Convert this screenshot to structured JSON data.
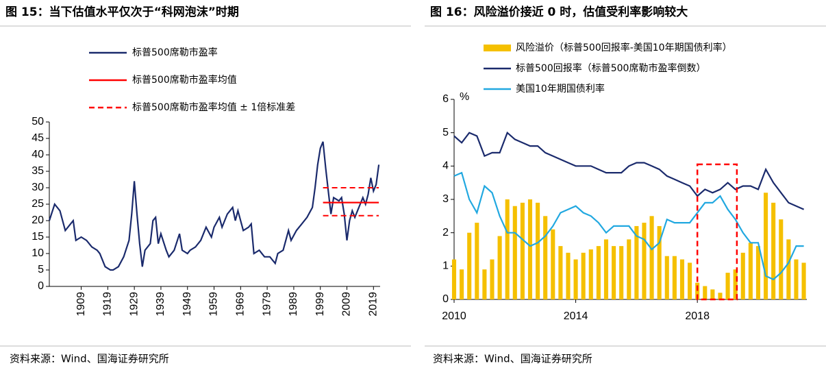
{
  "chart_data": [
    {
      "type": "line",
      "title": "图 15：当下估值水平仅次于“科网泡沫”时期",
      "source": "资料来源：Wind、国海证券研究所",
      "xlim": [
        1897,
        2021.5
      ],
      "xticks": [
        1909,
        1919,
        1929,
        1939,
        1949,
        1959,
        1969,
        1979,
        1989,
        1999,
        2009,
        2019
      ],
      "ylim": [
        0,
        50
      ],
      "yticks": [
        0,
        5,
        10,
        15,
        20,
        25,
        30,
        35,
        40,
        45,
        50
      ],
      "legend": "top",
      "series": [
        {
          "name": "标普500席勒市盈率",
          "color": "#1a2a6c",
          "x": [
            1897,
            1899,
            1901,
            1903,
            1905,
            1906,
            1907,
            1909,
            1911,
            1913,
            1915,
            1916,
            1917,
            1918,
            1920,
            1921,
            1923,
            1925,
            1927,
            1928,
            1929,
            1930,
            1931,
            1932,
            1933,
            1935,
            1936,
            1937,
            1938,
            1939,
            1941,
            1942,
            1944,
            1946,
            1947,
            1949,
            1950,
            1952,
            1954,
            1956,
            1958,
            1959,
            1961,
            1962,
            1964,
            1966,
            1967,
            1968,
            1970,
            1972,
            1973,
            1974,
            1976,
            1978,
            1980,
            1982,
            1983,
            1985,
            1987,
            1988,
            1990,
            1992,
            1994,
            1996,
            1997,
            1998,
            1999,
            2000,
            2001,
            2002,
            2003,
            2004,
            2006,
            2007,
            2008,
            2009,
            2010,
            2011,
            2012,
            2013,
            2014,
            2015,
            2016,
            2017,
            2018,
            2019,
            2020,
            2021
          ],
          "values": [
            20,
            25,
            23,
            17,
            19,
            20,
            14,
            15,
            14,
            12,
            11,
            10,
            8,
            6,
            5,
            5,
            6,
            9,
            14,
            22,
            32,
            22,
            13,
            6,
            11,
            13,
            20,
            21,
            13,
            16,
            11,
            9,
            11,
            16,
            11,
            10,
            11,
            12,
            14,
            18,
            15,
            18,
            21,
            18,
            22,
            24,
            20,
            23,
            17,
            18,
            19,
            10,
            11,
            9,
            9,
            7,
            10,
            11,
            17,
            14,
            17,
            19,
            21,
            24,
            30,
            37,
            42,
            44,
            36,
            29,
            22,
            27,
            26,
            27,
            22,
            14,
            20,
            23,
            21,
            23,
            25,
            27,
            25,
            28,
            33,
            29,
            31,
            37
          ]
        },
        {
          "name": "标普500席勒市盈率均值",
          "color": "#ff0000",
          "x": [
            2000,
            2021
          ],
          "values": [
            25.5,
            25.5
          ]
        },
        {
          "name": "标普500席勒市盈率均值 ± 1倍标准差",
          "color": "#ff0000",
          "dash": true,
          "x": [
            2000,
            2021
          ],
          "values": [
            30,
            30
          ],
          "lower": [
            21.5,
            21.5
          ]
        }
      ]
    },
    {
      "type": "combo",
      "title": "图 16：风险溢价接近 0 时，估值受利率影响较大",
      "source": "资料来源：Wind、国海证券研究所",
      "ylabel": "%",
      "xlim": [
        2010,
        2021.6
      ],
      "xticks": [
        2010,
        2014,
        2018
      ],
      "ylim": [
        0,
        6
      ],
      "yticks": [
        0,
        1,
        2,
        3,
        4,
        5,
        6
      ],
      "legend": "top",
      "highlight": {
        "color": "#ff0000",
        "x": [
          2018,
          2019.3
        ],
        "y": [
          0,
          4.05
        ]
      },
      "x": [
        2010,
        2010.25,
        2010.5,
        2010.75,
        2011,
        2011.25,
        2011.5,
        2011.75,
        2012,
        2012.25,
        2012.5,
        2012.75,
        2013,
        2013.25,
        2013.5,
        2013.75,
        2014,
        2014.25,
        2014.5,
        2014.75,
        2015,
        2015.25,
        2015.5,
        2015.75,
        2016,
        2016.25,
        2016.5,
        2016.75,
        2017,
        2017.25,
        2017.5,
        2017.75,
        2018,
        2018.25,
        2018.5,
        2018.75,
        2019,
        2019.25,
        2019.5,
        2019.75,
        2020,
        2020.25,
        2020.5,
        2020.75,
        2021,
        2021.25,
        2021.5
      ],
      "series": [
        {
          "name": "风险溢价（标普500回报率-美国10年期国债利率）",
          "kind": "bar",
          "color": "#f5c000",
          "values": [
            1.2,
            0.9,
            2.0,
            2.3,
            0.9,
            1.2,
            1.9,
            3.0,
            2.8,
            2.9,
            3.0,
            2.9,
            2.5,
            2.1,
            1.6,
            1.4,
            1.2,
            1.4,
            1.5,
            1.6,
            1.8,
            1.6,
            1.6,
            1.8,
            2.2,
            2.3,
            2.5,
            2.2,
            1.3,
            1.3,
            1.2,
            1.1,
            0.5,
            0.4,
            0.3,
            0.2,
            0.8,
            0.9,
            1.4,
            1.7,
            1.6,
            3.2,
            2.9,
            2.4,
            1.8,
            1.2,
            1.1
          ]
        },
        {
          "name": "标普500回报率（标普500席勒市盈率倒数）",
          "kind": "line",
          "color": "#1a2a6c",
          "values": [
            4.9,
            4.7,
            5.0,
            4.9,
            4.3,
            4.4,
            4.4,
            5.0,
            4.8,
            4.7,
            4.6,
            4.6,
            4.4,
            4.3,
            4.2,
            4.1,
            4.0,
            4.0,
            4.0,
            3.9,
            3.8,
            3.8,
            3.8,
            4.0,
            4.1,
            4.1,
            4.0,
            3.9,
            3.7,
            3.6,
            3.5,
            3.4,
            3.1,
            3.3,
            3.2,
            3.3,
            3.5,
            3.3,
            3.4,
            3.4,
            3.3,
            3.9,
            3.5,
            3.2,
            2.9,
            2.8,
            2.7
          ]
        },
        {
          "name": "美国10年期国债利率",
          "kind": "line",
          "color": "#21a8e0",
          "values": [
            3.7,
            3.8,
            3.0,
            2.6,
            3.4,
            3.2,
            2.5,
            2.0,
            2.0,
            1.8,
            1.6,
            1.7,
            1.9,
            2.2,
            2.6,
            2.7,
            2.8,
            2.6,
            2.5,
            2.3,
            2.0,
            2.2,
            2.2,
            2.2,
            1.9,
            1.8,
            1.5,
            1.7,
            2.4,
            2.3,
            2.3,
            2.3,
            2.6,
            2.9,
            2.9,
            3.1,
            2.7,
            2.4,
            2.0,
            1.7,
            1.7,
            0.7,
            0.6,
            0.8,
            1.1,
            1.6,
            1.6
          ]
        }
      ]
    }
  ]
}
